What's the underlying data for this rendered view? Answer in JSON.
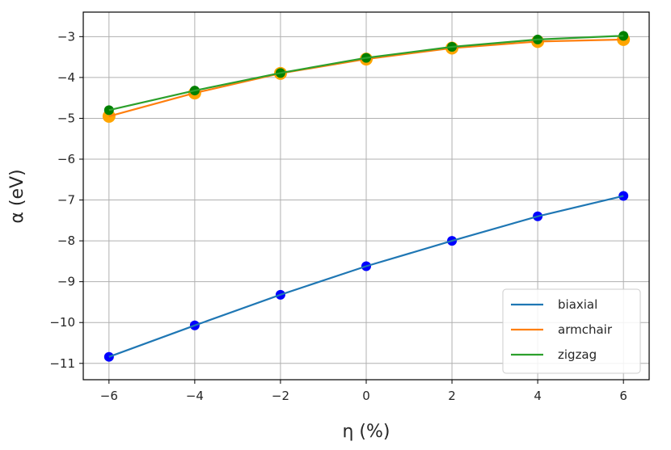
{
  "chart_data": {
    "type": "line",
    "xlabel": "η (%)",
    "ylabel": "α (eV)",
    "xlim": [
      -6.6,
      6.6
    ],
    "ylim": [
      -11.4,
      -2.4
    ],
    "xticks": [
      -6,
      -4,
      -2,
      0,
      2,
      4,
      6
    ],
    "yticks": [
      -3,
      -4,
      -5,
      -6,
      -7,
      -8,
      -9,
      -10,
      -11
    ],
    "xtick_labels": [
      "−6",
      "−4",
      "−2",
      "0",
      "2",
      "4",
      "6"
    ],
    "ytick_labels": [
      "−3",
      "−4",
      "−5",
      "−6",
      "−7",
      "−8",
      "−9",
      "−10",
      "−11"
    ],
    "grid": true,
    "legend_position": "lower-right",
    "x": [
      -6,
      -4,
      -2,
      0,
      2,
      4,
      6
    ],
    "series": [
      {
        "name": "biaxial",
        "line_color": "#1f77b4",
        "marker_color": "#0000ff",
        "marker_size": 6,
        "values": [
          -10.84,
          -10.07,
          -9.32,
          -8.62,
          -8.0,
          -7.4,
          -6.9
        ]
      },
      {
        "name": "armchair",
        "line_color": "#ff7f0e",
        "marker_color": "#ffa500",
        "marker_size": 8,
        "values": [
          -4.95,
          -4.38,
          -3.9,
          -3.55,
          -3.28,
          -3.12,
          -3.07
        ]
      },
      {
        "name": "zigzag",
        "line_color": "#2ca02c",
        "marker_color": "#008000",
        "marker_size": 6,
        "values": [
          -4.8,
          -4.32,
          -3.89,
          -3.52,
          -3.25,
          -3.07,
          -2.98
        ]
      }
    ]
  }
}
